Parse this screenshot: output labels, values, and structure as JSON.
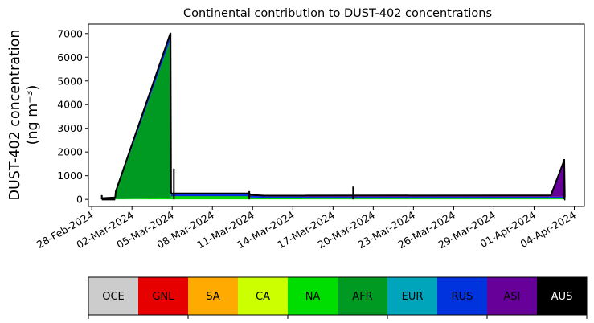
{
  "chart_data": {
    "type": "area",
    "title": "Continental contribution to DUST-402 concentrations",
    "ylabel_line1": "DUST-402 concentration",
    "ylabel_line2": "(ng m⁻³)",
    "xlabel": "",
    "ylim": [
      -300,
      7400
    ],
    "xlim": [
      "2024-02-27T18:00",
      "2024-04-04T18:00"
    ],
    "grid": false,
    "yticks": [
      0,
      1000,
      2000,
      3000,
      4000,
      5000,
      6000,
      7000
    ],
    "xticks": [
      "28-Feb-2024",
      "02-Mar-2024",
      "05-Mar-2024",
      "08-Mar-2024",
      "11-Mar-2024",
      "14-Mar-2024",
      "17-Mar-2024",
      "20-Mar-2024",
      "23-Mar-2024",
      "26-Mar-2024",
      "29-Mar-2024",
      "01-Apr-2024",
      "04-Apr-2024"
    ],
    "x": [
      "2024-02-28T18:00",
      "2024-02-28T19:00",
      "2024-02-29T18:00",
      "2024-02-29T19:00",
      "2024-03-04T21:00",
      "2024-03-04T22:00",
      "2024-03-04T23:00",
      "2024-03-10T18:00",
      "2024-03-10T19:00",
      "2024-03-10T20:00",
      "2024-03-11T21:00",
      "2024-03-11T22:00",
      "2024-03-14T18:00",
      "2024-03-14T19:00",
      "2024-03-14T20:00",
      "2024-04-02T06:00",
      "2024-04-03T06:00",
      "2024-04-03T07:00",
      "2024-04-03T08:00"
    ],
    "series": [
      {
        "name": "OCE",
        "values": [
          0,
          0,
          0,
          0,
          0,
          0,
          0,
          0,
          0,
          0,
          0,
          0,
          0,
          0,
          0,
          0,
          0,
          0,
          0
        ]
      },
      {
        "name": "GNL",
        "values": [
          0,
          0,
          0,
          0,
          0,
          0,
          0,
          0,
          0,
          0,
          0,
          0,
          0,
          0,
          0,
          0,
          0,
          0,
          0
        ]
      },
      {
        "name": "SA",
        "values": [
          0,
          0,
          0,
          0,
          0,
          0,
          0,
          0,
          0,
          0,
          0,
          0,
          0,
          0,
          0,
          0,
          0,
          0,
          0
        ]
      },
      {
        "name": "CA",
        "values": [
          0,
          0,
          0,
          0,
          0,
          0,
          0,
          0,
          0,
          0,
          0,
          0,
          0,
          0,
          0,
          0,
          0,
          0,
          0
        ]
      },
      {
        "name": "NA",
        "values": [
          10,
          10,
          20,
          20,
          50,
          100,
          120,
          120,
          100,
          60,
          50,
          40,
          40,
          40,
          30,
          30,
          30,
          20,
          20
        ]
      },
      {
        "name": "AFR",
        "values": [
          20,
          20,
          40,
          250,
          6700,
          50,
          20,
          20,
          20,
          20,
          20,
          20,
          20,
          20,
          20,
          20,
          20,
          20,
          20
        ]
      },
      {
        "name": "EUR",
        "values": [
          0,
          0,
          0,
          0,
          0,
          0,
          0,
          0,
          0,
          0,
          0,
          0,
          0,
          0,
          0,
          0,
          0,
          0,
          0
        ]
      },
      {
        "name": "RUS",
        "values": [
          10,
          10,
          10,
          50,
          200,
          80,
          70,
          70,
          70,
          70,
          60,
          60,
          60,
          60,
          60,
          60,
          60,
          60,
          60
        ]
      },
      {
        "name": "ASI",
        "values": [
          10,
          10,
          10,
          20,
          80,
          50,
          40,
          40,
          40,
          40,
          30,
          40,
          40,
          40,
          50,
          60,
          1550,
          0,
          0
        ]
      },
      {
        "name": "AUS",
        "values": [
          0,
          0,
          0,
          0,
          0,
          0,
          0,
          0,
          0,
          0,
          0,
          0,
          0,
          0,
          0,
          0,
          0,
          0,
          0
        ]
      }
    ],
    "spikes": [
      {
        "x": "2024-02-28T18:00",
        "y": 180
      },
      {
        "x": "2024-03-05T03:00",
        "y": 1300
      },
      {
        "x": "2024-03-10T18:00",
        "y": 350
      },
      {
        "x": "2024-03-18T12:00",
        "y": 540
      },
      {
        "x": "2024-04-03T06:00",
        "y": 1700
      }
    ],
    "baseline_segments": [
      {
        "x0": "2024-02-28T18:00",
        "x1": "2024-02-29T18:00",
        "y": 0
      },
      {
        "x0": "2024-04-03T06:00",
        "x1": "2024-04-03T08:00",
        "y": 0
      }
    ],
    "legend": {
      "placement": "bottom colorbar",
      "entries": [
        {
          "name": "OCE",
          "color": "#cccccc",
          "text_color": "#000000"
        },
        {
          "name": "GNL",
          "color": "#e60000",
          "text_color": "#000000"
        },
        {
          "name": "SA",
          "color": "#ffaa00",
          "text_color": "#000000"
        },
        {
          "name": "CA",
          "color": "#ccff00",
          "text_color": "#000000"
        },
        {
          "name": "NA",
          "color": "#00dd00",
          "text_color": "#000000"
        },
        {
          "name": "AFR",
          "color": "#009922",
          "text_color": "#000000"
        },
        {
          "name": "EUR",
          "color": "#00a5bb",
          "text_color": "#000000"
        },
        {
          "name": "RUS",
          "color": "#0033dd",
          "text_color": "#000000"
        },
        {
          "name": "ASI",
          "color": "#660099",
          "text_color": "#000000"
        },
        {
          "name": "AUS",
          "color": "#000000",
          "text_color": "#ffffff"
        }
      ]
    }
  }
}
